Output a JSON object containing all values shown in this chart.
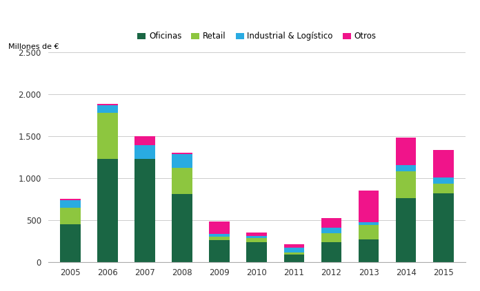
{
  "years": [
    2005,
    2006,
    2007,
    2008,
    2009,
    2010,
    2011,
    2012,
    2013,
    2014,
    2015
  ],
  "oficinas": [
    450,
    1225,
    1225,
    810,
    260,
    235,
    85,
    235,
    270,
    760,
    820
  ],
  "retail": [
    200,
    550,
    0,
    310,
    40,
    50,
    30,
    110,
    170,
    320,
    115
  ],
  "industrial": [
    90,
    90,
    170,
    170,
    30,
    25,
    55,
    60,
    30,
    75,
    75
  ],
  "otros": [
    10,
    20,
    105,
    10,
    150,
    40,
    40,
    120,
    380,
    325,
    325
  ],
  "color_oficinas": "#1a6644",
  "color_retail": "#8dc63f",
  "color_industrial": "#29abe2",
  "color_otros": "#f0148a",
  "ylabel": "Millones de €",
  "ylim": [
    0,
    2500
  ],
  "yticks": [
    0,
    500,
    1000,
    1500,
    2000,
    2500
  ],
  "ytick_labels": [
    "0",
    "500",
    "1.000",
    "1.500",
    "2.000",
    "2.500"
  ],
  "legend_labels": [
    "Oficinas",
    "Retail",
    "Industrial & Logístico",
    "Otros"
  ],
  "bar_width": 0.55,
  "fig_width": 6.96,
  "fig_height": 4.23,
  "fig_dpi": 100,
  "grid_color": "#cccccc",
  "grid_lw": 0.7,
  "tick_fontsize": 8.5,
  "legend_fontsize": 8.5,
  "ylabel_fontsize": 8
}
